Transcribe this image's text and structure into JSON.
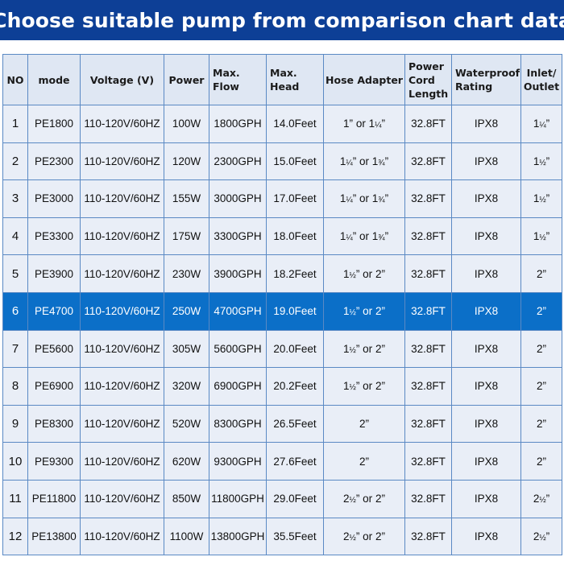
{
  "title": "Choose suitable pump from comparison chart data",
  "headers": [
    "NO",
    "mode",
    "Voltage (V)",
    "Power",
    "Max. Flow",
    "Max. Head",
    "Hose Adapter",
    "Power Cord Length",
    "Waterproof Rating",
    "Inlet/ Outlet"
  ],
  "highlighted_row": "6",
  "highlight_color": "#0b6fc8",
  "banner_color": "#0d3f96",
  "rows": [
    {
      "no": "1",
      "mode": "PE1800",
      "voltage": "110-120V/60HZ",
      "power": "100W",
      "flow": "1800GPH",
      "head": "14.0Feet",
      "hose": "1” or 1¼”",
      "cord": "32.8FT",
      "rating": "IPX8",
      "inlet": "1¼”"
    },
    {
      "no": "2",
      "mode": "PE2300",
      "voltage": "110-120V/60HZ",
      "power": "120W",
      "flow": "2300GPH",
      "head": "15.0Feet",
      "hose": "1¼” or 1¾”",
      "cord": "32.8FT",
      "rating": "IPX8",
      "inlet": "1½”"
    },
    {
      "no": "3",
      "mode": "PE3000",
      "voltage": "110-120V/60HZ",
      "power": "155W",
      "flow": "3000GPH",
      "head": "17.0Feet",
      "hose": "1¼” or 1¾”",
      "cord": "32.8FT",
      "rating": "IPX8",
      "inlet": "1½”"
    },
    {
      "no": "4",
      "mode": "PE3300",
      "voltage": "110-120V/60HZ",
      "power": "175W",
      "flow": "3300GPH",
      "head": "18.0Feet",
      "hose": "1¼” or 1¾”",
      "cord": "32.8FT",
      "rating": "IPX8",
      "inlet": "1½”"
    },
    {
      "no": "5",
      "mode": "PE3900",
      "voltage": "110-120V/60HZ",
      "power": "230W",
      "flow": "3900GPH",
      "head": "18.2Feet",
      "hose": "1½” or 2”",
      "cord": "32.8FT",
      "rating": "IPX8",
      "inlet": "2”"
    },
    {
      "no": "6",
      "mode": "PE4700",
      "voltage": "110-120V/60HZ",
      "power": "250W",
      "flow": "4700GPH",
      "head": "19.0Feet",
      "hose": "1½” or 2”",
      "cord": "32.8FT",
      "rating": "IPX8",
      "inlet": "2”"
    },
    {
      "no": "7",
      "mode": "PE5600",
      "voltage": "110-120V/60HZ",
      "power": "305W",
      "flow": "5600GPH",
      "head": "20.0Feet",
      "hose": "1½” or 2”",
      "cord": "32.8FT",
      "rating": "IPX8",
      "inlet": "2”"
    },
    {
      "no": "8",
      "mode": "PE6900",
      "voltage": "110-120V/60HZ",
      "power": "320W",
      "flow": "6900GPH",
      "head": "20.2Feet",
      "hose": "1½” or 2”",
      "cord": "32.8FT",
      "rating": "IPX8",
      "inlet": "2”"
    },
    {
      "no": "9",
      "mode": "PE8300",
      "voltage": "110-120V/60HZ",
      "power": "520W",
      "flow": "8300GPH",
      "head": "26.5Feet",
      "hose": "2”",
      "cord": "32.8FT",
      "rating": "IPX8",
      "inlet": "2”"
    },
    {
      "no": "10",
      "mode": "PE9300",
      "voltage": "110-120V/60HZ",
      "power": "620W",
      "flow": "9300GPH",
      "head": "27.6Feet",
      "hose": "2”",
      "cord": "32.8FT",
      "rating": "IPX8",
      "inlet": "2”"
    },
    {
      "no": "11",
      "mode": "PE11800",
      "voltage": "110-120V/60HZ",
      "power": "850W",
      "flow": "11800GPH",
      "head": "29.0Feet",
      "hose": "2½” or 2”",
      "cord": "32.8FT",
      "rating": "IPX8",
      "inlet": "2½”"
    },
    {
      "no": "12",
      "mode": "PE13800",
      "voltage": "110-120V/60HZ",
      "power": "1100W",
      "flow": "13800GPH",
      "head": "35.5Feet",
      "hose": "2½” or 2”",
      "cord": "32.8FT",
      "rating": "IPX8",
      "inlet": "2½”"
    }
  ]
}
